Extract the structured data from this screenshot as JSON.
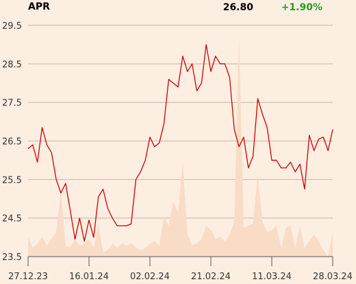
{
  "header": {
    "name": "APR",
    "price": "26.80",
    "change": "+1.90%",
    "change_color": "#22a022"
  },
  "chart_data": {
    "type": "line",
    "title": "APR",
    "xlabel": "",
    "ylabel": "",
    "ylim": [
      23.5,
      29.5
    ],
    "y_ticks": [
      "29.5",
      "28.5",
      "27.5",
      "26.5",
      "25.5",
      "24.5",
      "23.5"
    ],
    "x_ticks": [
      "27.12.23",
      "16.01.24",
      "02.02.24",
      "21.02.24",
      "11.03.24",
      "28.03.24"
    ],
    "grid": "horizontal",
    "line_color": "#cc0000",
    "volume_color": "#f9dcc6",
    "price": [
      26.3,
      26.4,
      25.95,
      26.85,
      26.4,
      26.2,
      25.5,
      25.15,
      25.4,
      24.7,
      23.95,
      24.5,
      23.9,
      24.45,
      24.0,
      25.05,
      25.25,
      24.75,
      24.5,
      24.3,
      24.3,
      24.3,
      24.35,
      25.5,
      25.7,
      26.0,
      26.6,
      26.35,
      26.45,
      26.95,
      28.1,
      28.0,
      27.9,
      28.7,
      28.3,
      28.5,
      27.8,
      28.0,
      29.0,
      28.3,
      28.7,
      28.5,
      28.5,
      28.15,
      26.8,
      26.35,
      26.6,
      25.8,
      26.1,
      27.6,
      27.2,
      26.85,
      26.0,
      26.0,
      25.8,
      25.8,
      25.95,
      25.7,
      25.9,
      25.25,
      26.65,
      26.25,
      26.55,
      26.6,
      26.25,
      26.8
    ],
    "volume_rel": [
      0.09,
      0.04,
      0.06,
      0.09,
      0.05,
      0.08,
      0.11,
      0.3,
      0.05,
      0.04,
      0.08,
      0.05,
      0.06,
      0.08,
      0.04,
      0.15,
      0.02,
      0.03,
      0.06,
      0.04,
      0.06,
      0.05,
      0.06,
      0.04,
      0.03,
      0.04,
      0.06,
      0.07,
      0.05,
      0.18,
      0.14,
      0.25,
      0.2,
      0.43,
      0.1,
      0.05,
      0.06,
      0.08,
      0.14,
      0.12,
      0.08,
      0.09,
      0.07,
      0.1,
      0.16,
      1.0,
      0.13,
      0.14,
      0.15,
      0.37,
      0.16,
      0.11,
      0.12,
      0.14,
      0.04,
      0.13,
      0.14,
      0.04,
      0.14,
      0.04,
      0.07,
      0.1,
      0.07,
      0.03,
      0.0,
      0.11
    ]
  }
}
